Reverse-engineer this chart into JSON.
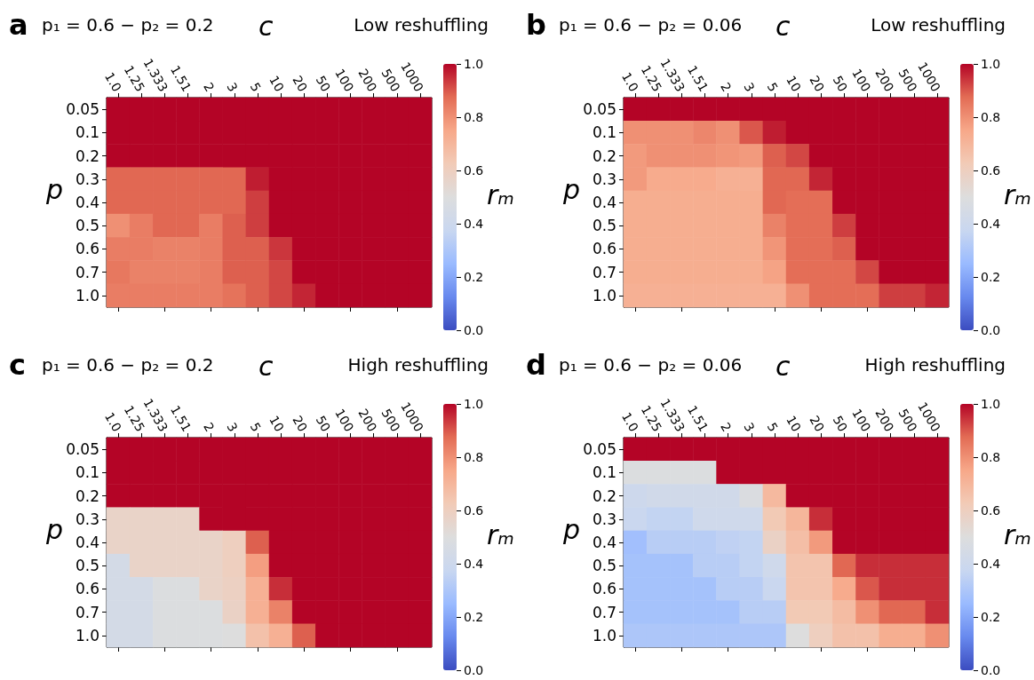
{
  "chart_data": [
    {
      "type": "heatmap",
      "title": "p₁ = 0.6 − p₂ = 0.2",
      "subtitle": "Low reshuffling",
      "annotations": [
        "a"
      ],
      "xlabel": "c",
      "ylabel": "p",
      "clabel": "rₘ",
      "categories": [
        "1.0",
        "1.25",
        "1.333",
        "1.51",
        "2",
        "3",
        "5",
        "10",
        "20",
        "50",
        "100",
        "200",
        "500",
        "1000"
      ],
      "y_categories": [
        "0.05",
        "0.1",
        "0.2",
        "0.3",
        "0.4",
        "0.5",
        "0.6",
        "0.7",
        "1.0"
      ],
      "cells": [
        [
          1,
          1,
          1,
          1,
          1,
          1,
          1,
          1,
          1,
          1,
          1,
          1,
          1,
          1
        ],
        [
          1,
          1,
          1,
          1,
          1,
          1,
          1,
          1,
          1,
          1,
          1,
          1,
          1,
          1
        ],
        [
          1,
          1,
          1,
          1,
          1,
          1,
          1,
          1,
          1,
          1,
          1,
          1,
          1,
          1
        ],
        [
          0.88,
          0.88,
          0.88,
          0.88,
          0.88,
          0.88,
          0.97,
          1,
          1,
          1,
          1,
          1,
          1,
          1
        ],
        [
          0.88,
          0.88,
          0.88,
          0.88,
          0.88,
          0.88,
          0.93,
          1,
          1,
          1,
          1,
          1,
          1,
          1
        ],
        [
          0.8,
          0.84,
          0.88,
          0.88,
          0.84,
          0.89,
          0.93,
          1,
          1,
          1,
          1,
          1,
          1,
          1
        ],
        [
          0.84,
          0.84,
          0.83,
          0.83,
          0.84,
          0.89,
          0.89,
          0.94,
          1,
          1,
          1,
          1,
          1,
          1
        ],
        [
          0.85,
          0.83,
          0.83,
          0.83,
          0.84,
          0.89,
          0.89,
          0.92,
          1,
          1,
          1,
          1,
          1,
          1
        ],
        [
          0.84,
          0.84,
          0.84,
          0.84,
          0.84,
          0.86,
          0.89,
          0.92,
          0.96,
          1,
          1,
          1,
          1,
          1
        ]
      ],
      "clim": [
        0,
        1
      ],
      "cticks": [
        {
          "value": 0,
          "label": "0.0"
        },
        {
          "value": 0.2,
          "label": "0.2"
        },
        {
          "value": 0.4,
          "label": "0.4"
        },
        {
          "value": 0.6,
          "label": "0.6"
        },
        {
          "value": 0.8,
          "label": "0.8"
        },
        {
          "value": 1,
          "label": "1.0"
        }
      ]
    },
    {
      "type": "heatmap",
      "title": "p₁ = 0.6 − p₂ = 0.06",
      "subtitle": "Low reshuffling",
      "annotations": [
        "b"
      ],
      "xlabel": "c",
      "ylabel": "p",
      "clabel": "rₘ",
      "categories": [
        "1.0",
        "1.25",
        "1.333",
        "1.51",
        "2",
        "3",
        "5",
        "10",
        "20",
        "50",
        "100",
        "200",
        "500",
        "1000"
      ],
      "y_categories": [
        "0.05",
        "0.1",
        "0.2",
        "0.3",
        "0.4",
        "0.5",
        "0.6",
        "0.7",
        "1.0"
      ],
      "cells": [
        [
          1,
          1,
          1,
          1,
          1,
          1,
          1,
          1,
          1,
          1,
          1,
          1,
          1,
          1
        ],
        [
          0.8,
          0.8,
          0.8,
          0.82,
          0.8,
          0.9,
          0.97,
          1,
          1,
          1,
          1,
          1,
          1,
          1
        ],
        [
          0.78,
          0.8,
          0.8,
          0.8,
          0.79,
          0.78,
          0.89,
          0.92,
          1,
          1,
          1,
          1,
          1,
          1
        ],
        [
          0.78,
          0.74,
          0.74,
          0.74,
          0.72,
          0.72,
          0.88,
          0.88,
          0.96,
          1,
          1,
          1,
          1,
          1
        ],
        [
          0.73,
          0.73,
          0.73,
          0.73,
          0.73,
          0.73,
          0.88,
          0.87,
          0.87,
          1,
          1,
          1,
          1,
          1
        ],
        [
          0.73,
          0.73,
          0.73,
          0.73,
          0.73,
          0.73,
          0.83,
          0.87,
          0.87,
          0.93,
          1,
          1,
          1,
          1
        ],
        [
          0.73,
          0.73,
          0.73,
          0.73,
          0.73,
          0.73,
          0.79,
          0.87,
          0.87,
          0.89,
          1,
          1,
          1,
          1
        ],
        [
          0.73,
          0.73,
          0.73,
          0.73,
          0.73,
          0.73,
          0.76,
          0.87,
          0.87,
          0.87,
          0.92,
          1,
          1,
          1
        ],
        [
          0.72,
          0.72,
          0.72,
          0.72,
          0.72,
          0.72,
          0.72,
          0.8,
          0.87,
          0.87,
          0.87,
          0.93,
          0.93,
          0.96
        ]
      ],
      "clim": [
        0,
        1
      ],
      "cticks": [
        {
          "value": 0,
          "label": "0.0"
        },
        {
          "value": 0.2,
          "label": "0.2"
        },
        {
          "value": 0.4,
          "label": "0.4"
        },
        {
          "value": 0.6,
          "label": "0.6"
        },
        {
          "value": 0.8,
          "label": "0.8"
        },
        {
          "value": 1,
          "label": "1.0"
        }
      ]
    },
    {
      "type": "heatmap",
      "title": "p₁ = 0.6 − p₂ = 0.2",
      "subtitle": "High reshuffling",
      "annotations": [
        "c"
      ],
      "xlabel": "c",
      "ylabel": "p",
      "clabel": "rₘ",
      "categories": [
        "1.0",
        "1.25",
        "1.333",
        "1.51",
        "2",
        "3",
        "5",
        "10",
        "20",
        "50",
        "100",
        "200",
        "500",
        "1000"
      ],
      "y_categories": [
        "0.05",
        "0.1",
        "0.2",
        "0.3",
        "0.4",
        "0.5",
        "0.6",
        "0.7",
        "1.0"
      ],
      "cells": [
        [
          1,
          1,
          1,
          1,
          1,
          1,
          1,
          1,
          1,
          1,
          1,
          1,
          1,
          1
        ],
        [
          1,
          1,
          1,
          1,
          1,
          1,
          1,
          1,
          1,
          1,
          1,
          1,
          1,
          1
        ],
        [
          1,
          1,
          1,
          1,
          1,
          1,
          1,
          1,
          1,
          1,
          1,
          1,
          1,
          1
        ],
        [
          0.57,
          0.57,
          0.57,
          0.57,
          1,
          1,
          1,
          1,
          1,
          1,
          1,
          1,
          1,
          1
        ],
        [
          0.57,
          0.57,
          0.57,
          0.57,
          0.57,
          0.6,
          0.89,
          1,
          1,
          1,
          1,
          1,
          1,
          1
        ],
        [
          0.44,
          0.57,
          0.57,
          0.57,
          0.57,
          0.6,
          0.77,
          1,
          1,
          1,
          1,
          1,
          1,
          1
        ],
        [
          0.44,
          0.44,
          0.49,
          0.49,
          0.57,
          0.59,
          0.72,
          0.95,
          1,
          1,
          1,
          1,
          1,
          1
        ],
        [
          0.44,
          0.44,
          0.49,
          0.49,
          0.49,
          0.58,
          0.72,
          0.83,
          1,
          1,
          1,
          1,
          1,
          1
        ],
        [
          0.44,
          0.44,
          0.49,
          0.49,
          0.49,
          0.5,
          0.66,
          0.72,
          0.89,
          1,
          1,
          1,
          1,
          1
        ]
      ],
      "clim": [
        0,
        1
      ],
      "cticks": [
        {
          "value": 0,
          "label": "0.0"
        },
        {
          "value": 0.2,
          "label": "0.2"
        },
        {
          "value": 0.4,
          "label": "0.4"
        },
        {
          "value": 0.6,
          "label": "0.6"
        },
        {
          "value": 0.8,
          "label": "0.8"
        },
        {
          "value": 1,
          "label": "1.0"
        }
      ]
    },
    {
      "type": "heatmap",
      "title": "p₁ = 0.6 − p₂ = 0.06",
      "subtitle": "High reshuffling",
      "annotations": [
        "d"
      ],
      "xlabel": "c",
      "ylabel": "p",
      "clabel": "rₘ",
      "categories": [
        "1.0",
        "1.25",
        "1.333",
        "1.51",
        "2",
        "3",
        "5",
        "10",
        "20",
        "50",
        "100",
        "200",
        "500",
        "1000"
      ],
      "y_categories": [
        "0.05",
        "0.1",
        "0.2",
        "0.3",
        "0.4",
        "0.5",
        "0.6",
        "0.7",
        "1.0"
      ],
      "cells": [
        [
          1,
          1,
          1,
          1,
          1,
          1,
          1,
          1,
          1,
          1,
          1,
          1,
          1,
          1
        ],
        [
          0.49,
          0.49,
          0.49,
          0.49,
          1,
          1,
          1,
          1,
          1,
          1,
          1,
          1,
          1,
          1
        ],
        [
          0.4,
          0.42,
          0.42,
          0.42,
          0.42,
          0.48,
          0.69,
          1,
          1,
          1,
          1,
          1,
          1,
          1
        ],
        [
          0.38,
          0.36,
          0.36,
          0.41,
          0.41,
          0.41,
          0.63,
          0.7,
          0.95,
          1,
          1,
          1,
          1,
          1
        ],
        [
          0.27,
          0.33,
          0.33,
          0.33,
          0.35,
          0.36,
          0.58,
          0.67,
          0.78,
          1,
          1,
          1,
          1,
          1
        ],
        [
          0.28,
          0.28,
          0.28,
          0.33,
          0.33,
          0.36,
          0.41,
          0.65,
          0.65,
          0.88,
          0.95,
          0.95,
          0.95,
          0.95
        ],
        [
          0.28,
          0.28,
          0.28,
          0.28,
          0.33,
          0.33,
          0.38,
          0.65,
          0.65,
          0.74,
          0.9,
          0.95,
          0.95,
          0.95
        ],
        [
          0.28,
          0.28,
          0.28,
          0.28,
          0.28,
          0.33,
          0.33,
          0.63,
          0.63,
          0.68,
          0.8,
          0.88,
          0.88,
          0.95
        ],
        [
          0.3,
          0.3,
          0.3,
          0.3,
          0.3,
          0.3,
          0.3,
          0.5,
          0.6,
          0.66,
          0.66,
          0.73,
          0.73,
          0.8
        ]
      ],
      "clim": [
        0,
        1
      ],
      "cticks": [
        {
          "value": 0,
          "label": "0.0"
        },
        {
          "value": 0.2,
          "label": "0.2"
        },
        {
          "value": 0.4,
          "label": "0.4"
        },
        {
          "value": 0.6,
          "label": "0.6"
        },
        {
          "value": 0.8,
          "label": "0.8"
        },
        {
          "value": 1,
          "label": "1.0"
        }
      ]
    }
  ]
}
